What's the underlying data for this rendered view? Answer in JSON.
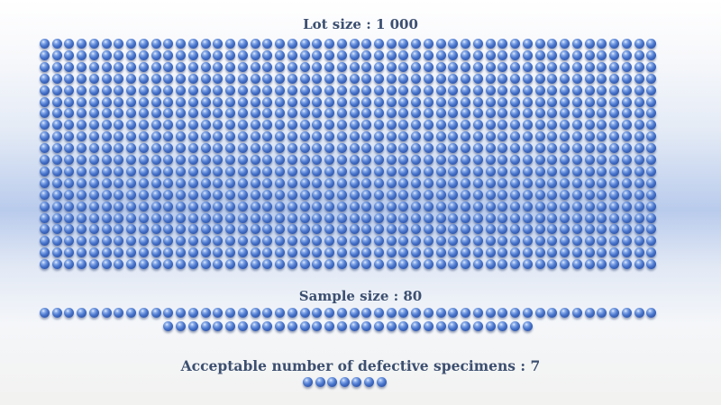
{
  "labels": {
    "lot": "Lot size : 1 000",
    "sample": "Sample size : 80",
    "acceptable": "Acceptable number of defective specimens : 7"
  },
  "diagram": {
    "lot_size": 1000,
    "sample_size": 80,
    "acceptable_defects": 7
  },
  "colors": {
    "text": "#3c4f70",
    "sphere": "#3f6ac4",
    "sphere_highlight": "#e6efff",
    "sphere_shadow": "#1f3f86",
    "band": "#b9cbec"
  }
}
